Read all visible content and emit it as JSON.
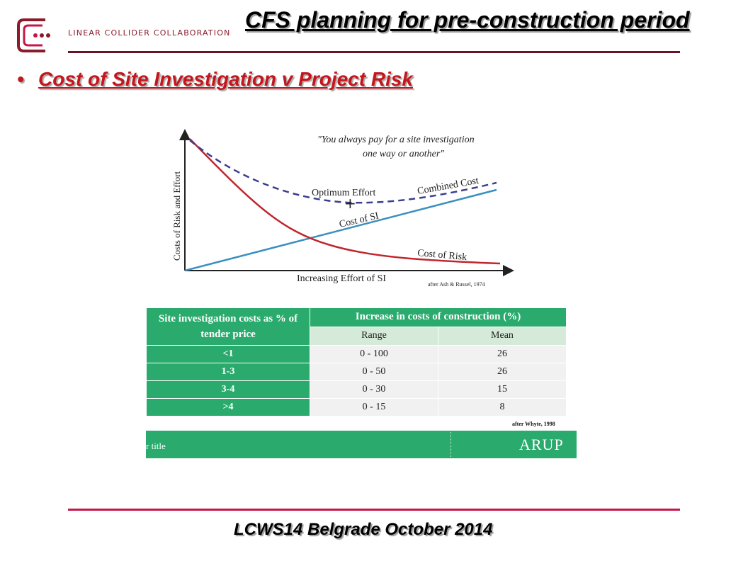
{
  "header": {
    "logo_text": "LINEAR COLLIDER COLLABORATION",
    "title": "CFS planning for pre-construction period"
  },
  "bullet": {
    "text": "Cost of Site Investigation v Project Risk"
  },
  "chart_data": {
    "type": "line",
    "quote_line1": "\"You always pay for a site investigation",
    "quote_line2": "one way or another\"",
    "xlabel": "Increasing Effort of SI",
    "ylabel": "Costs of Risk and Effort",
    "source": "after Ash & Russel, 1974",
    "annotations": {
      "optimum": "Optimum  Effort",
      "combined": "Combined Cost",
      "cost_si": "Cost of SI",
      "cost_risk": "Cost of Risk"
    },
    "series_colors": {
      "cost_of_risk": "#c0262c",
      "cost_of_si": "#3a8fc0",
      "combined_cost": "#3a3f8f"
    }
  },
  "table": {
    "header_col1": "Site investigation costs as % of tender price",
    "header_group": "Increase in costs of construction (%)",
    "sub_range": "Range",
    "sub_mean": "Mean",
    "rows": [
      {
        "pct": "<1",
        "range": "0 - 100",
        "mean": "26"
      },
      {
        "pct": "1-3",
        "range": "0 - 50",
        "mean": "26"
      },
      {
        "pct": "3-4",
        "range": "0 - 30",
        "mean": "15"
      },
      {
        "pct": ">4",
        "range": "0 - 15",
        "mean": "8"
      }
    ],
    "source": "after Whyte, 1998"
  },
  "figure_footer": {
    "left_text": "r title",
    "brand": "ARUP"
  },
  "footer": {
    "event": "LCWS14 Belgrade October 2014"
  },
  "colors": {
    "accent_red": "#c4161c",
    "logo_maroon": "#8b1a2b",
    "table_green": "#2aaa6c"
  }
}
